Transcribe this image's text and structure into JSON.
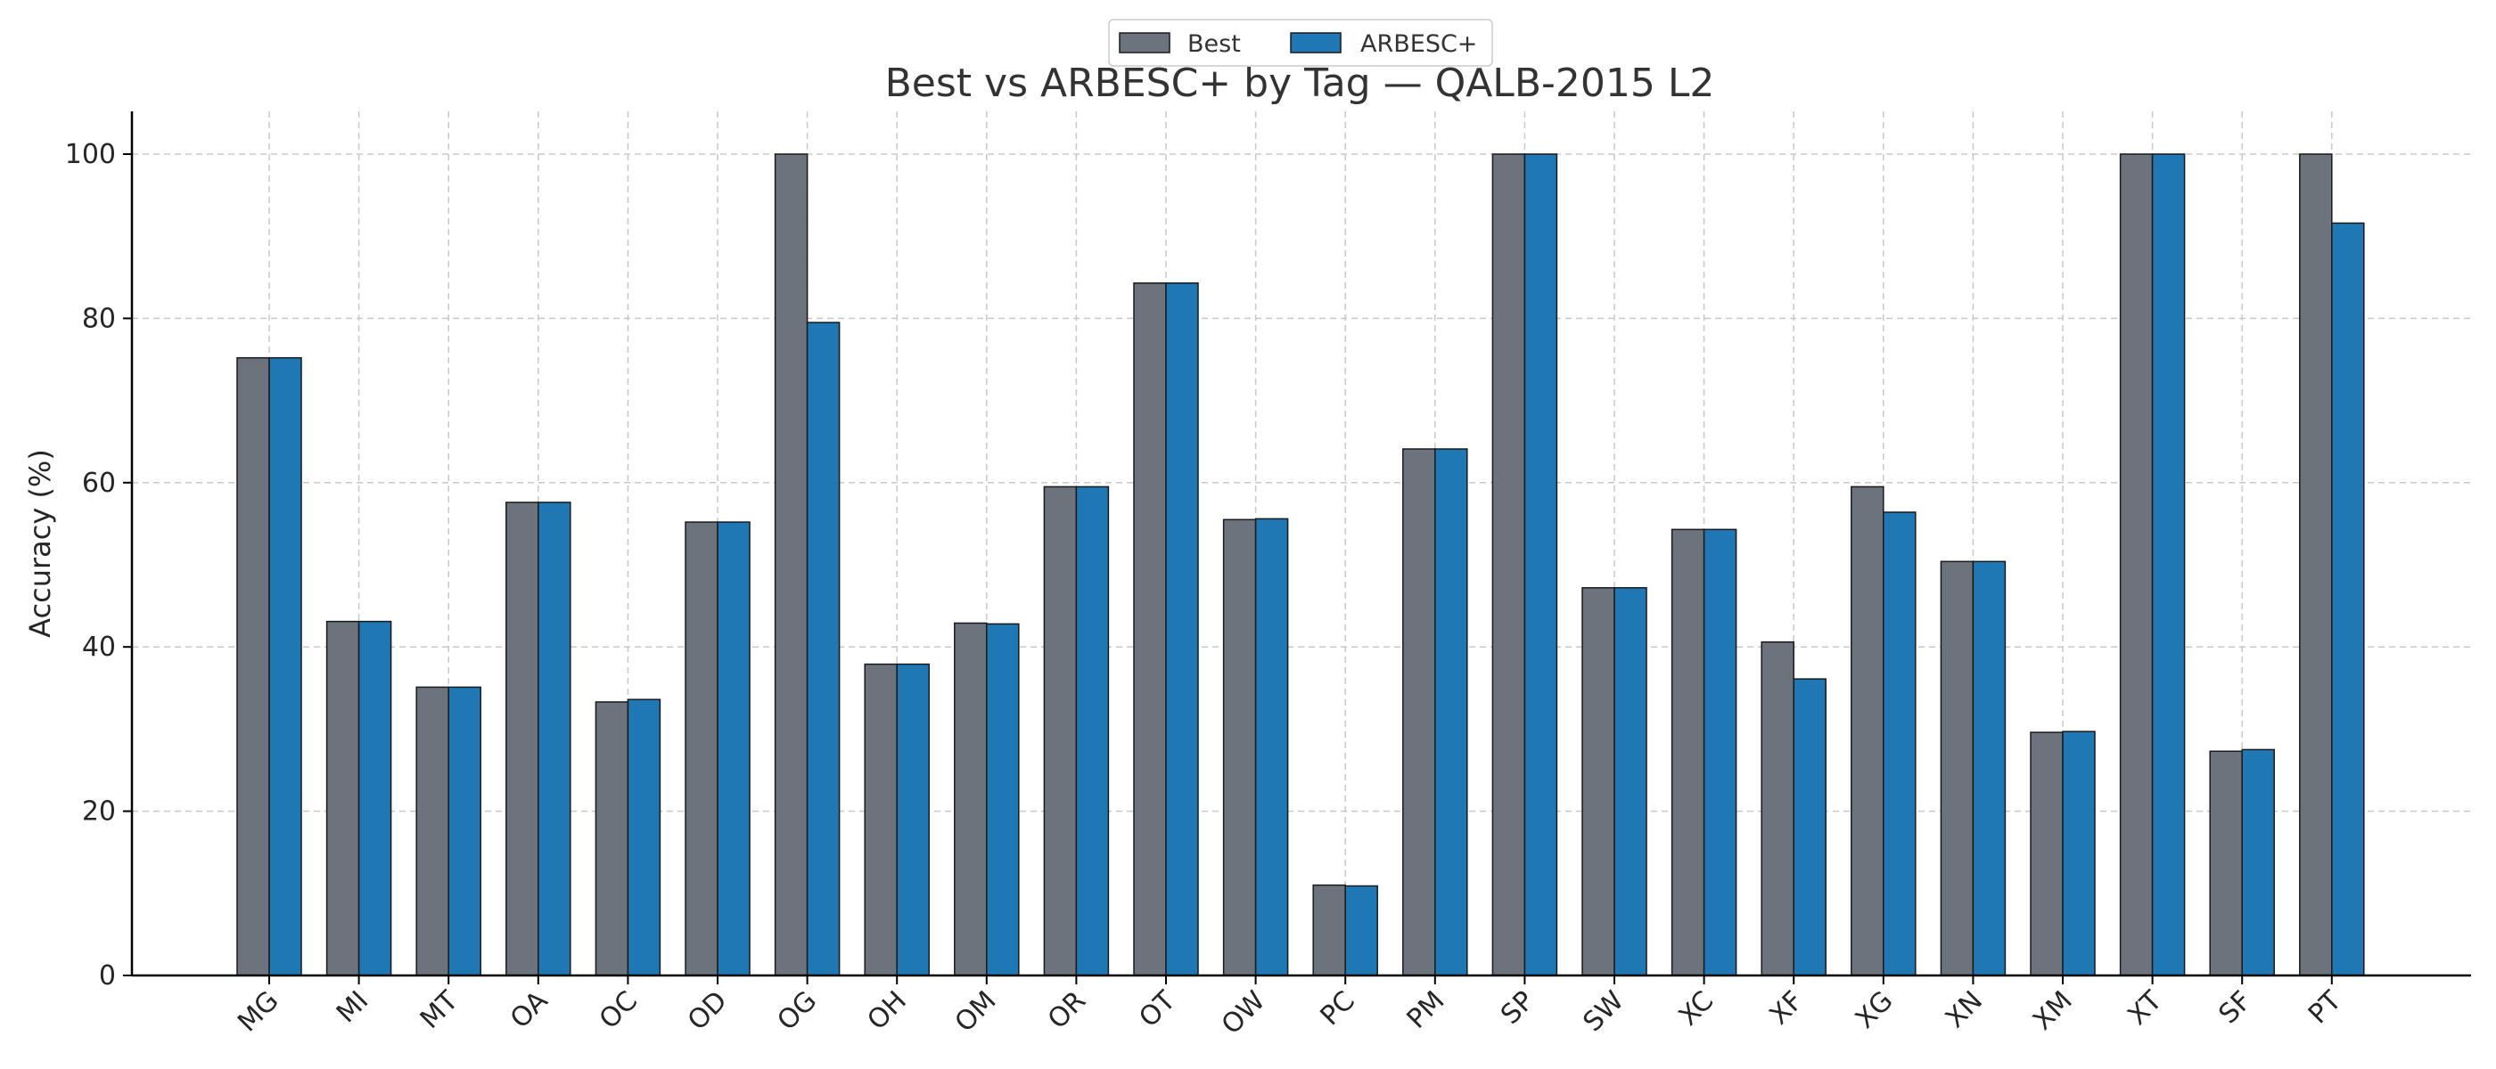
{
  "chart_data": {
    "type": "bar",
    "title": "Best vs ARBESC+ by Tag — QALB-2015 L2",
    "xlabel": "",
    "ylabel": "Accuracy (%)",
    "ylim": [
      0,
      105
    ],
    "yticks": [
      0,
      20,
      40,
      60,
      80,
      100
    ],
    "grid": true,
    "legend_position": "top-center",
    "categories": [
      "MG",
      "MI",
      "MT",
      "OA",
      "OC",
      "OD",
      "OG",
      "OH",
      "OM",
      "OR",
      "OT",
      "OW",
      "PC",
      "PM",
      "SP",
      "SW",
      "XC",
      "XF",
      "XG",
      "XN",
      "XM",
      "XT",
      "SF",
      "PT"
    ],
    "series": [
      {
        "name": "Best",
        "color": "#6c737c",
        "values": [
          75.2,
          43.1,
          35.1,
          57.6,
          33.3,
          55.2,
          100,
          37.9,
          42.9,
          59.5,
          84.3,
          55.5,
          11.0,
          64.1,
          100,
          47.2,
          54.3,
          40.6,
          59.5,
          50.4,
          29.6,
          100,
          27.3,
          100
        ]
      },
      {
        "name": "ARBESC+",
        "color": "#1f77b4",
        "values": [
          75.2,
          43.1,
          35.1,
          57.6,
          33.6,
          55.2,
          79.5,
          37.9,
          42.8,
          59.5,
          84.3,
          55.6,
          10.9,
          64.1,
          100,
          47.2,
          54.3,
          36.1,
          56.4,
          50.4,
          29.7,
          100,
          27.5,
          91.6
        ]
      }
    ]
  }
}
